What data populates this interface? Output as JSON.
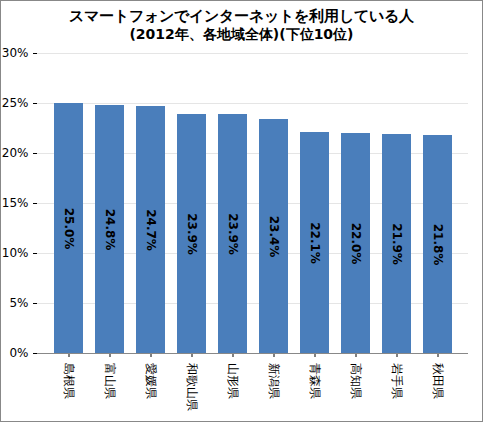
{
  "chart_data": {
    "type": "bar",
    "title": "スマートフォンでインターネットを利用している人",
    "subtitle": "(2012年、各地域全体)(下位10位)",
    "categories": [
      "島根県",
      "富山県",
      "愛媛県",
      "和歌山県",
      "山形県",
      "新潟県",
      "青森県",
      "高知県",
      "岩手県",
      "秋田県"
    ],
    "values": [
      25.0,
      24.8,
      24.7,
      23.9,
      23.9,
      23.4,
      22.1,
      22.0,
      21.9,
      21.8
    ],
    "value_labels": [
      "25.0%",
      "24.8%",
      "24.7%",
      "23.9%",
      "23.9%",
      "23.4%",
      "22.1%",
      "22.0%",
      "21.9%",
      "21.8%"
    ],
    "color": "#4a7ebb",
    "ylim": [
      0,
      30
    ],
    "yticks": [
      {
        "value": 0,
        "label": "0%"
      },
      {
        "value": 5,
        "label": "5%"
      },
      {
        "value": 10,
        "label": "10%"
      },
      {
        "value": 15,
        "label": "15%"
      },
      {
        "value": 20,
        "label": "20%"
      },
      {
        "value": 25,
        "label": "25%"
      },
      {
        "value": 30,
        "label": "30%"
      }
    ],
    "grid": true,
    "data_labels": true
  }
}
